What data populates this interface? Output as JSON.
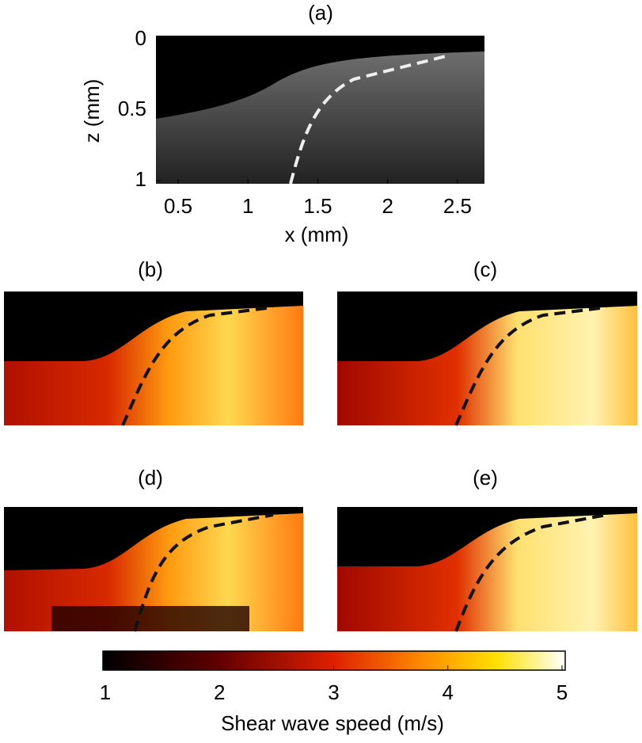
{
  "panel_a": {
    "title": "(a)",
    "x_axis": {
      "label": "x (mm)",
      "lim": [
        0.341,
        2.693
      ],
      "ticks": [
        0.5,
        1,
        1.5,
        2,
        2.5
      ]
    },
    "z_axis": {
      "label": "z (mm)",
      "lim": [
        -0.028,
        1.022
      ],
      "ticks": [
        0,
        0.5,
        1
      ]
    }
  },
  "panels": [
    {
      "title": "(b)"
    },
    {
      "title": "(c)"
    },
    {
      "title": "(d)"
    },
    {
      "title": "(e)"
    }
  ],
  "colorbar": {
    "label": "Shear wave speed (m/s)",
    "lim": [
      0.979,
      5.028
    ],
    "ticks": [
      1,
      2,
      3,
      4,
      5
    ]
  }
}
